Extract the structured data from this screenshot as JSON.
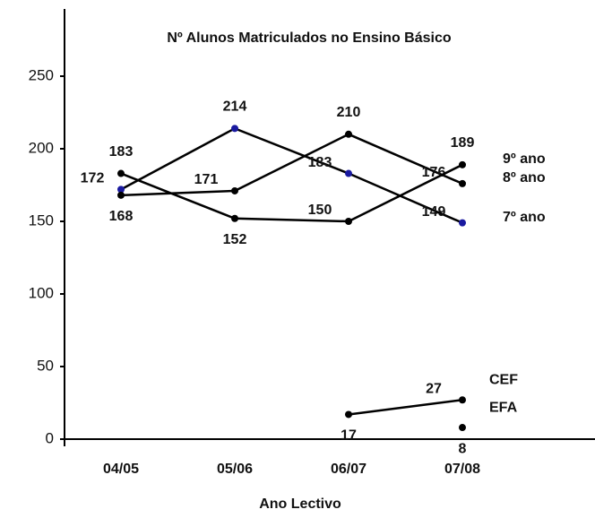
{
  "chart_data": {
    "type": "line",
    "title": "Nº Alunos Matriculados no Ensino Básico",
    "x_label": "Ano Lectivo",
    "categories": [
      "04/05",
      "05/06",
      "06/07",
      "07/08"
    ],
    "series": [
      {
        "name": "7º ano",
        "color": "#000000",
        "marker_color": "#1a1aa0",
        "values": [
          172,
          214,
          183,
          149
        ]
      },
      {
        "name": "8º ano",
        "color": "#000000",
        "marker_color": "#000000",
        "values": [
          168,
          171,
          210,
          176
        ]
      },
      {
        "name": "9º ano",
        "color": "#000000",
        "marker_color": "#000000",
        "values": [
          183,
          152,
          150,
          189
        ]
      },
      {
        "name": "CEF",
        "color": "#000000",
        "marker_color": "#000000",
        "values": [
          null,
          null,
          17,
          27
        ]
      },
      {
        "name": "EFA",
        "color": "#000000",
        "marker_color": "#000000",
        "values": [
          null,
          null,
          null,
          8
        ]
      }
    ],
    "ylim": [
      0,
      250
    ],
    "yticks": [
      0,
      50,
      100,
      150,
      200,
      250
    ],
    "grid": false
  }
}
